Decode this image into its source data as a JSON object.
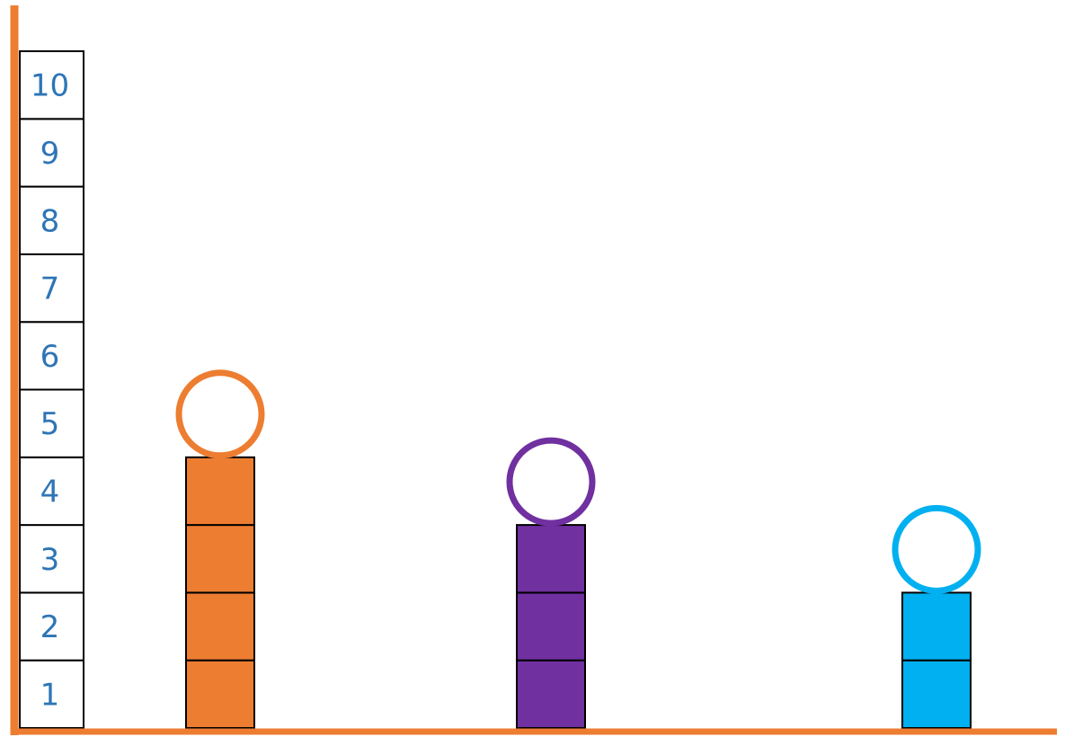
{
  "colors": {
    "axis": "#ED7D31",
    "scale_text": "#2E75B6",
    "orange": "#ED7D31",
    "purple": "#7030A0",
    "blue": "#00B0F0"
  },
  "chart_data": {
    "type": "bar",
    "title": "",
    "xlabel": "",
    "ylabel": "",
    "y_ticks": [
      "1",
      "2",
      "3",
      "4",
      "5",
      "6",
      "7",
      "8",
      "9",
      "10"
    ],
    "ylim": [
      0,
      10
    ],
    "grid": false,
    "legend": "none",
    "bars": [
      {
        "color": "#ED7D31",
        "value": 4,
        "answer_circle": "empty"
      },
      {
        "color": "#7030A0",
        "value": 3,
        "answer_circle": "empty"
      },
      {
        "color": "#00B0F0",
        "value": 2,
        "answer_circle": "empty"
      }
    ]
  }
}
